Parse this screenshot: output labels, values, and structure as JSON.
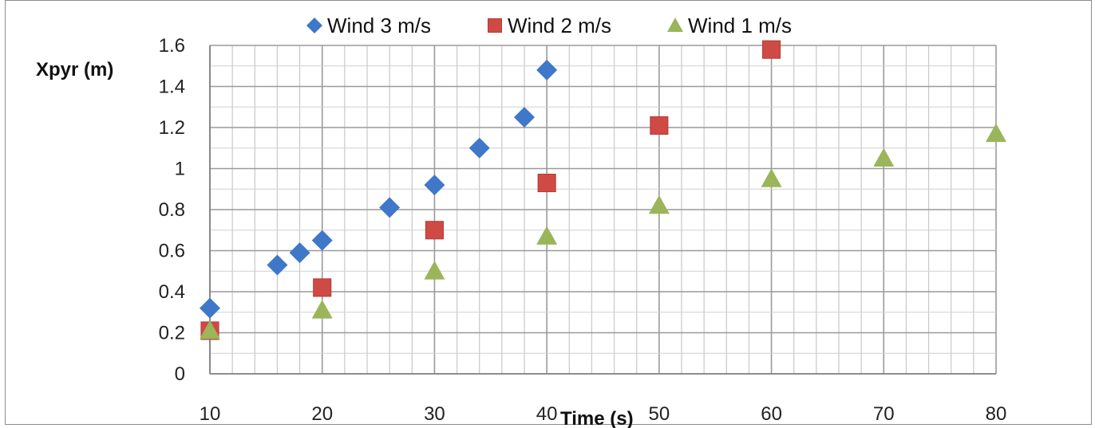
{
  "chart_data": {
    "type": "scatter",
    "title": "",
    "xlabel": "Time (s)",
    "ylabel": "Xpyr (m)",
    "xlim": [
      10,
      80
    ],
    "ylim": [
      0,
      1.6
    ],
    "x_ticks": [
      "10",
      "20",
      "30",
      "40",
      "50",
      "60",
      "70",
      "80"
    ],
    "y_ticks": [
      "0",
      "0.2",
      "0.4",
      "0.6",
      "0.8",
      "1",
      "1.2",
      "1.4",
      "1.6"
    ],
    "grid": true,
    "legend_position": "top",
    "series": [
      {
        "name": "Wind 3 m/s",
        "marker": "diamond",
        "color": "#3F78C8",
        "points": [
          [
            10,
            0.32
          ],
          [
            16,
            0.53
          ],
          [
            18,
            0.59
          ],
          [
            20,
            0.65
          ],
          [
            26,
            0.81
          ],
          [
            30,
            0.92
          ],
          [
            34,
            1.1
          ],
          [
            38,
            1.25
          ],
          [
            40,
            1.48
          ]
        ]
      },
      {
        "name": "Wind 2 m/s",
        "marker": "square",
        "color": "#D04A45",
        "points": [
          [
            10,
            0.21
          ],
          [
            20,
            0.42
          ],
          [
            30,
            0.7
          ],
          [
            40,
            0.93
          ],
          [
            50,
            1.21
          ],
          [
            60,
            1.58
          ]
        ]
      },
      {
        "name": "Wind 1 m/s",
        "marker": "triangle",
        "color": "#9BB55A",
        "points": [
          [
            10,
            0.21
          ],
          [
            20,
            0.31
          ],
          [
            30,
            0.5
          ],
          [
            40,
            0.67
          ],
          [
            50,
            0.82
          ],
          [
            60,
            0.95
          ],
          [
            70,
            1.05
          ],
          [
            80,
            1.17
          ]
        ]
      }
    ]
  }
}
